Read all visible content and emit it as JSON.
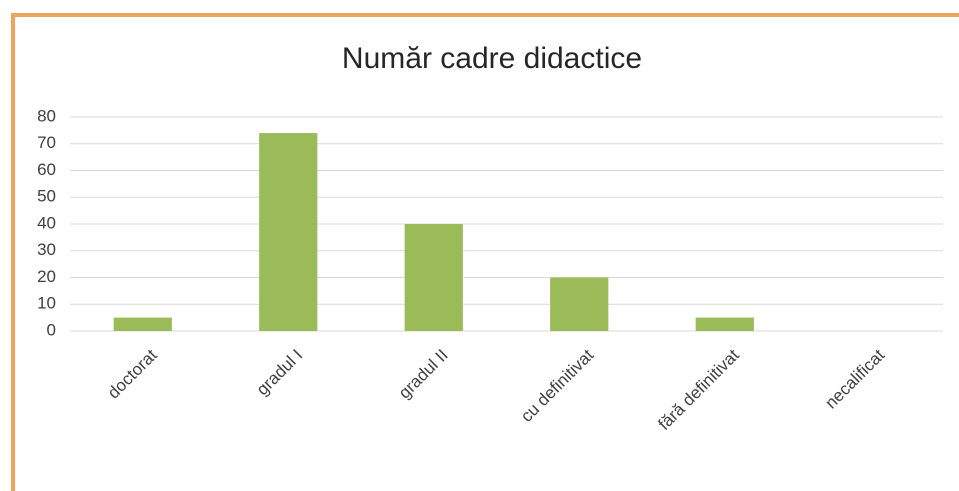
{
  "chart_data": {
    "type": "bar",
    "title": "Număr cadre didactice",
    "categories": [
      "doctorat",
      "gradul I",
      "gradul II",
      "cu definitivat",
      "fără definitivat",
      "necalificat"
    ],
    "values": [
      5,
      74,
      40,
      20,
      5,
      0
    ],
    "color": "#9bbb59",
    "ylim": [
      0,
      80
    ],
    "yticks": [
      0,
      10,
      20,
      30,
      40,
      50,
      60,
      70,
      80
    ],
    "grid": true
  }
}
